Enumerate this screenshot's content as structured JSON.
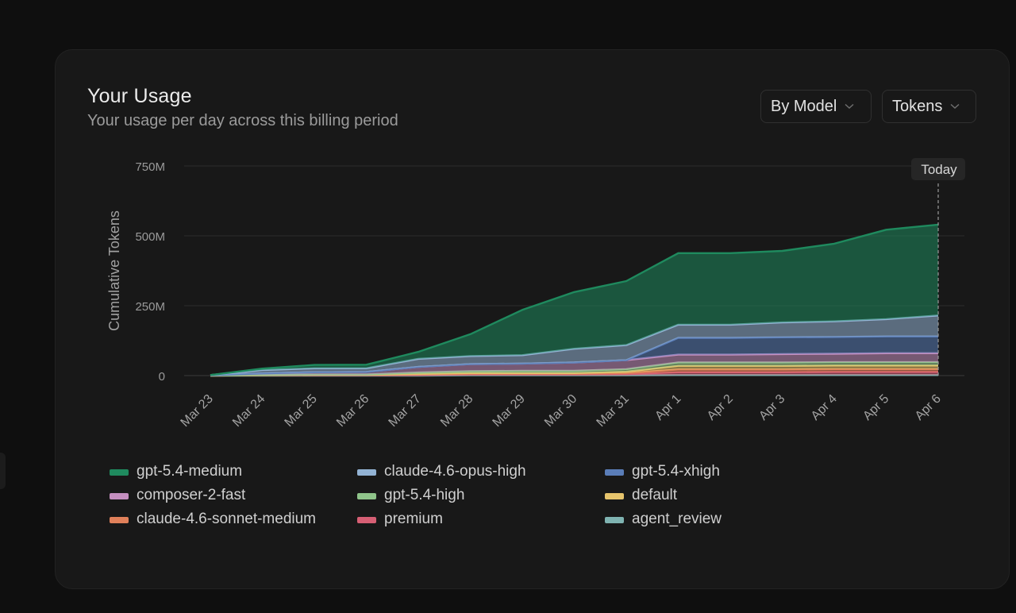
{
  "card": {
    "title": "Your Usage",
    "subtitle": "Your usage per day across this billing period"
  },
  "controls": {
    "group_by": "By Model",
    "metric": "Tokens"
  },
  "chart_data": {
    "type": "area",
    "stacked": true,
    "ylabel": "Cumulative Tokens",
    "ylim": [
      0,
      750000000
    ],
    "yticks": [
      0,
      250000000,
      500000000,
      750000000
    ],
    "ytick_labels": [
      "0",
      "250M",
      "500M",
      "750M"
    ],
    "x": [
      "Mar 23",
      "Mar 24",
      "Mar 25",
      "Mar 26",
      "Mar 27",
      "Mar 28",
      "Mar 29",
      "Mar 30",
      "Mar 31",
      "Apr 1",
      "Apr 2",
      "Apr 3",
      "Apr 4",
      "Apr 5",
      "Apr 6"
    ],
    "marker_label": "Today",
    "marker_x": "Apr 6",
    "grid": true,
    "legend_position": "bottom",
    "series": [
      {
        "name": "agent_review",
        "color": "#7fb3b1",
        "values": [
          0,
          0,
          0,
          0,
          0,
          1000000,
          1000000,
          1000000,
          1000000,
          2000000,
          2000000,
          2000000,
          2000000,
          2000000,
          2000000
        ]
      },
      {
        "name": "premium",
        "color": "#d65f74",
        "values": [
          0,
          1000000,
          1000000,
          1000000,
          2000000,
          3000000,
          3000000,
          3000000,
          4000000,
          10000000,
          10000000,
          10000000,
          11000000,
          11000000,
          11000000
        ]
      },
      {
        "name": "claude-4.6-sonnet-medium",
        "color": "#e0805a",
        "values": [
          0,
          1000000,
          2000000,
          2000000,
          3000000,
          3000000,
          3000000,
          3000000,
          4000000,
          10000000,
          10000000,
          10000000,
          10000000,
          10000000,
          10000000
        ]
      },
      {
        "name": "default",
        "color": "#e6c46c",
        "values": [
          0,
          0,
          0,
          0,
          1000000,
          2000000,
          2000000,
          2000000,
          5000000,
          13000000,
          13000000,
          13000000,
          13000000,
          13000000,
          13000000
        ]
      },
      {
        "name": "gpt-5.4-high",
        "color": "#8fc48a",
        "values": [
          0,
          1000000,
          1000000,
          1000000,
          5000000,
          7000000,
          8000000,
          8000000,
          9000000,
          12000000,
          12000000,
          12000000,
          12000000,
          12000000,
          12000000
        ]
      },
      {
        "name": "composer-2-fast",
        "color": "#c58fc0",
        "values": [
          1000000,
          5000000,
          8000000,
          9000000,
          20000000,
          25000000,
          26000000,
          30000000,
          32000000,
          28000000,
          28000000,
          30000000,
          30000000,
          32000000,
          32000000
        ]
      },
      {
        "name": "gpt-5.4-xhigh",
        "color": "#5a7db8",
        "values": [
          0,
          0,
          0,
          0,
          0,
          0,
          0,
          0,
          0,
          60000000,
          60000000,
          60000000,
          60000000,
          60000000,
          60000000
        ]
      },
      {
        "name": "claude-4.6-opus-high",
        "color": "#93b3d4",
        "values": [
          1000000,
          12000000,
          14000000,
          13000000,
          29000000,
          29000000,
          30000000,
          49000000,
          54000000,
          47000000,
          47000000,
          53000000,
          56000000,
          62000000,
          75000000
        ]
      },
      {
        "name": "gpt-5.4-medium",
        "color": "#1f8a5e",
        "values": [
          0,
          5000000,
          12000000,
          13000000,
          25000000,
          78000000,
          162000000,
          203000000,
          229000000,
          256000000,
          256000000,
          256000000,
          278000000,
          320000000,
          325000000
        ]
      }
    ]
  },
  "legend": {
    "items": [
      {
        "label": "gpt-5.4-medium",
        "color": "#1f8a5e"
      },
      {
        "label": "claude-4.6-opus-high",
        "color": "#93b3d4"
      },
      {
        "label": "gpt-5.4-xhigh",
        "color": "#5a7db8"
      },
      {
        "label": "composer-2-fast",
        "color": "#c58fc0"
      },
      {
        "label": "gpt-5.4-high",
        "color": "#8fc48a"
      },
      {
        "label": "default",
        "color": "#e6c46c"
      },
      {
        "label": "claude-4.6-sonnet-medium",
        "color": "#e0805a"
      },
      {
        "label": "premium",
        "color": "#d65f74"
      },
      {
        "label": "agent_review",
        "color": "#7fb3b1"
      }
    ]
  }
}
